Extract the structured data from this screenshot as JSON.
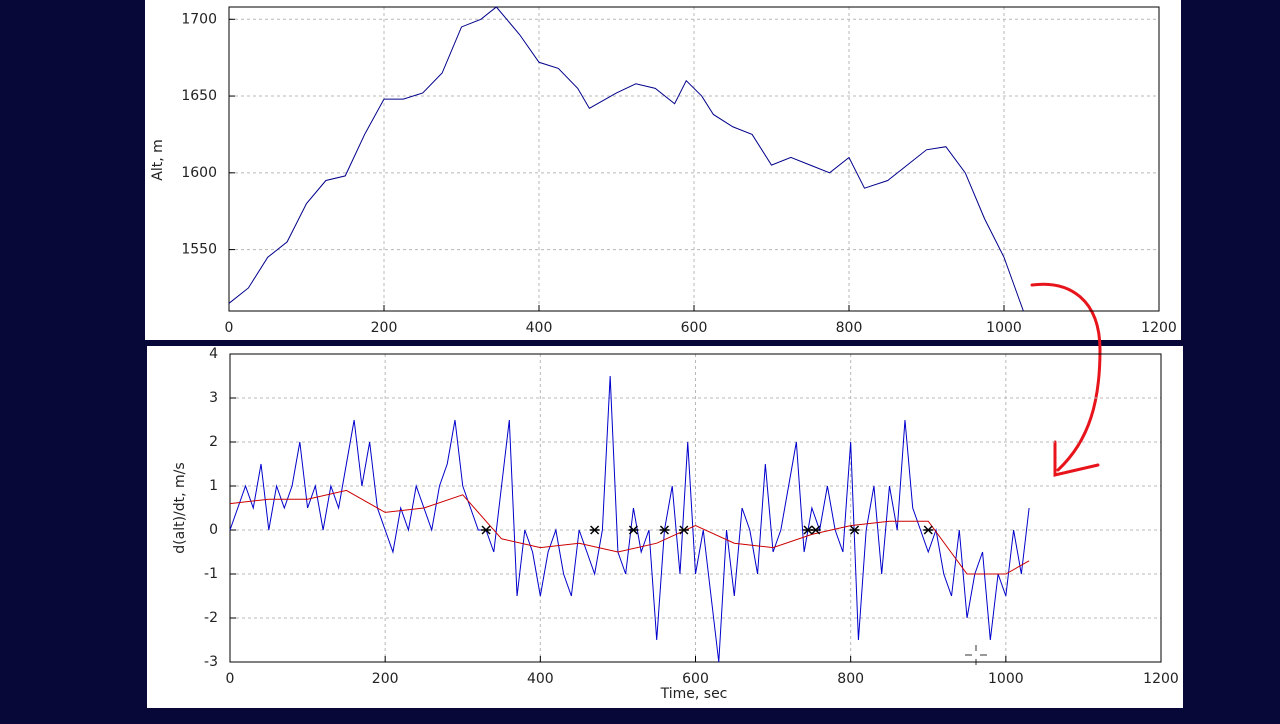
{
  "chart_data": [
    {
      "type": "line",
      "ylabel": "Alt, m",
      "xlim": [
        0,
        1200
      ],
      "xticks": [
        0,
        200,
        400,
        600,
        800,
        1000,
        1200
      ],
      "ylim": [
        1510,
        1708
      ],
      "yticks": [
        1550,
        1600,
        1650,
        1700
      ],
      "grid": true,
      "series": [
        {
          "color": "#00008b",
          "x": [
            0,
            25,
            50,
            75,
            100,
            125,
            150,
            175,
            200,
            225,
            250,
            275,
            300,
            325,
            345,
            375,
            400,
            425,
            450,
            465,
            500,
            525,
            550,
            575,
            590,
            610,
            625,
            650,
            675,
            700,
            725,
            750,
            775,
            800,
            820,
            850,
            870,
            900,
            925,
            950,
            975,
            1000,
            1025
          ],
          "values": [
            1515,
            1525,
            1545,
            1555,
            1580,
            1595,
            1598,
            1625,
            1648,
            1648,
            1652,
            1665,
            1695,
            1700,
            1708,
            1690,
            1672,
            1668,
            1655,
            1642,
            1652,
            1658,
            1655,
            1645,
            1660,
            1650,
            1638,
            1630,
            1625,
            1605,
            1610,
            1605,
            1600,
            1610,
            1590,
            1595,
            1603,
            1615,
            1617,
            1600,
            1570,
            1545,
            1510
          ]
        }
      ]
    },
    {
      "type": "line",
      "xlabel": "Time, sec",
      "ylabel": "d(alt)/dt, m/s",
      "xlim": [
        0,
        1200
      ],
      "xticks": [
        0,
        200,
        400,
        600,
        800,
        1000,
        1200
      ],
      "ylim": [
        -3,
        4
      ],
      "yticks": [
        -3,
        -2,
        -1,
        0,
        1,
        2,
        3,
        4
      ],
      "grid": true,
      "series": [
        {
          "color": "#0000cc",
          "x": [
            0,
            10,
            20,
            30,
            40,
            50,
            60,
            70,
            80,
            90,
            100,
            110,
            120,
            130,
            140,
            150,
            160,
            170,
            180,
            190,
            200,
            210,
            220,
            230,
            240,
            250,
            260,
            270,
            280,
            290,
            300,
            310,
            320,
            330,
            340,
            350,
            360,
            370,
            380,
            390,
            400,
            410,
            420,
            430,
            440,
            450,
            460,
            470,
            480,
            490,
            500,
            510,
            520,
            530,
            540,
            550,
            560,
            570,
            580,
            590,
            600,
            610,
            620,
            630,
            640,
            650,
            660,
            670,
            680,
            690,
            700,
            710,
            720,
            730,
            740,
            750,
            760,
            770,
            780,
            790,
            800,
            810,
            820,
            830,
            840,
            850,
            860,
            870,
            880,
            890,
            900,
            910,
            920,
            930,
            940,
            950,
            960,
            970,
            980,
            990,
            1000,
            1010,
            1020,
            1030
          ],
          "values": [
            0,
            0.5,
            1,
            0.5,
            1.5,
            0,
            1,
            0.5,
            1,
            2,
            0.5,
            1,
            0,
            1,
            0.5,
            1.5,
            2.5,
            1,
            2,
            0.5,
            0,
            -0.5,
            0.5,
            0,
            1,
            0.5,
            0,
            1,
            1.5,
            2.5,
            1,
            0.5,
            0,
            0,
            -0.5,
            1,
            2.5,
            -1.5,
            0,
            -0.5,
            -1.5,
            -0.5,
            0,
            -1,
            -1.5,
            0,
            -0.5,
            -1,
            0,
            3.5,
            -0.5,
            -1,
            0.5,
            -0.5,
            0,
            -2.5,
            0,
            1,
            -1,
            2,
            -1,
            0,
            -1.5,
            -3,
            0,
            -1.5,
            0.5,
            0,
            -1,
            1.5,
            -0.5,
            0,
            1,
            2,
            -0.5,
            0.5,
            0,
            1,
            0,
            -0.5,
            2,
            -2.5,
            0,
            1,
            -1,
            1,
            0,
            2.5,
            0.5,
            0,
            -0.5,
            0,
            -1,
            -1.5,
            0,
            -2,
            -1,
            -0.5,
            -2.5,
            -1,
            -1.5,
            0,
            -1,
            0.5
          ]
        },
        {
          "color": "#cc0000",
          "x": [
            0,
            50,
            100,
            150,
            200,
            250,
            300,
            350,
            400,
            450,
            500,
            550,
            600,
            650,
            700,
            750,
            800,
            850,
            900,
            950,
            1000,
            1030
          ],
          "values": [
            0.6,
            0.7,
            0.7,
            0.9,
            0.4,
            0.5,
            0.8,
            -0.2,
            -0.4,
            -0.3,
            -0.5,
            -0.3,
            0.1,
            -0.3,
            -0.4,
            -0.1,
            0.1,
            0.2,
            0.2,
            -1,
            -1,
            -0.7
          ]
        },
        {
          "type": "scatter",
          "color": "#000000",
          "x": [
            330,
            470,
            520,
            560,
            585,
            745,
            755,
            805,
            900
          ],
          "values": [
            0,
            0,
            0,
            0,
            0,
            0,
            0,
            0,
            0
          ]
        }
      ]
    }
  ]
}
